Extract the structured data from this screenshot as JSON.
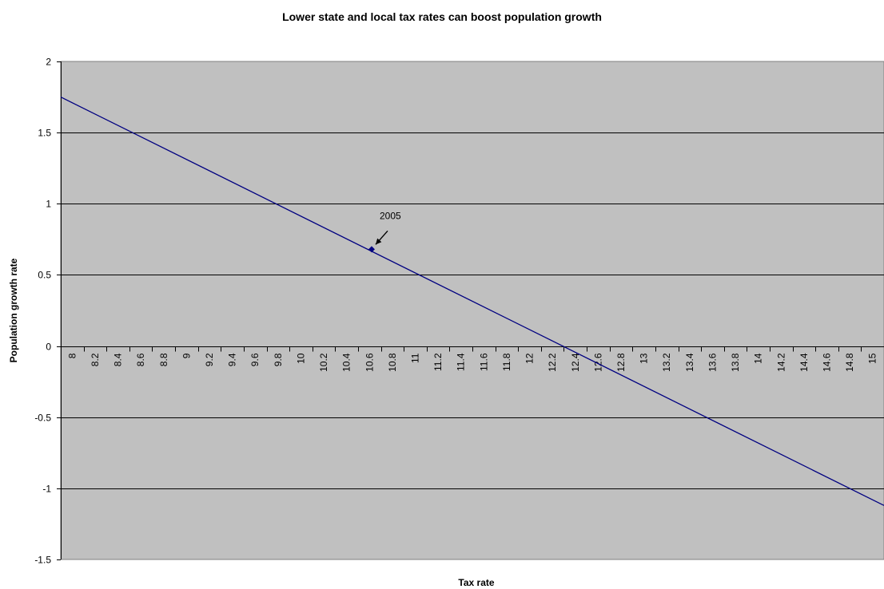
{
  "chart_data": {
    "type": "line",
    "title": "Lower state and local tax rates can boost population growth",
    "xlabel": "Tax rate",
    "ylabel": "Population growth rate",
    "xlim": [
      7.93,
      15.0
    ],
    "ylim": [
      -1.5,
      2
    ],
    "x_tick_labels": [
      "8",
      "8.2",
      "8.4",
      "8.6",
      "8.8",
      "9",
      "9.2",
      "9.4",
      "9.6",
      "9.8",
      "10",
      "10.2",
      "10.4",
      "10.6",
      "10.8",
      "11",
      "11.2",
      "11.4",
      "11.6",
      "11.8",
      "12",
      "12.2",
      "12.4",
      "12.6",
      "12.8",
      "13",
      "13.2",
      "13.4",
      "13.6",
      "13.8",
      "14",
      "14.2",
      "14.4",
      "14.6",
      "14.8",
      "15"
    ],
    "y_ticks": [
      -1.5,
      -1,
      -0.5,
      0,
      0.5,
      1,
      1.5,
      2
    ],
    "y_tick_labels": [
      "-1.5",
      "-1",
      "-0.5",
      "0",
      "0.5",
      "1",
      "1.5",
      "2"
    ],
    "grid": "horizontal",
    "legend": "none",
    "series": [
      {
        "x": [
          7.93,
          15.0
        ],
        "y": [
          1.75,
          -1.12
        ],
        "color": "#000080"
      }
    ],
    "marker": {
      "x": 10.6,
      "y": 0.68,
      "color": "#000080"
    },
    "annotation": {
      "text": "2005",
      "x": 10.6,
      "y": 0.68
    },
    "colors": {
      "plot_background": "#c0c0c0",
      "grid": "#000000",
      "line": "#000080"
    }
  }
}
